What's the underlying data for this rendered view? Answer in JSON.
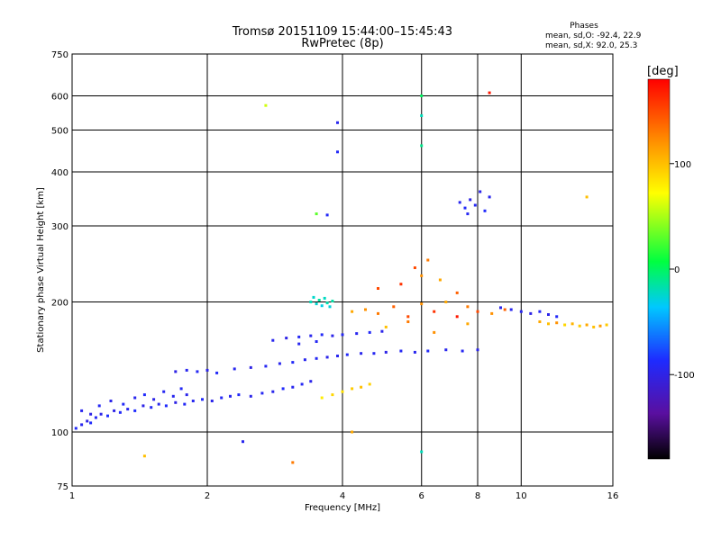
{
  "chart_data": {
    "type": "scatter",
    "title": "Tromsø 20151109 15:44:00–15:45:43",
    "subtitle": "RwPretec (8p)",
    "stats_title": "Phases",
    "stats_lines": [
      "mean, sd,O: -92.4, 22.9",
      "mean, sd,X:  92.0, 25.3"
    ],
    "xlabel": "Frequency [MHz]",
    "ylabel": "Stationary phase Virtual Height [km]",
    "x_scale": "log",
    "y_scale": "log",
    "xlim": [
      1,
      16
    ],
    "ylim": [
      75,
      750
    ],
    "xticks": [
      1,
      2,
      4,
      6,
      8,
      10,
      16
    ],
    "xtick_labels": [
      "1",
      "2",
      "4",
      "6",
      "8",
      "10",
      "16"
    ],
    "yticks": [
      75,
      100,
      200,
      300,
      400,
      500,
      600,
      750
    ],
    "ytick_labels": [
      "75",
      "100",
      "200",
      "300",
      "400",
      "500",
      "600",
      "750"
    ],
    "grid": true,
    "colorbar": {
      "label": "[deg]",
      "range": [
        -180,
        180
      ],
      "ticks": [
        100,
        0,
        -100
      ],
      "tick_labels": [
        "100",
        "0",
        "-100"
      ]
    },
    "series": [
      {
        "values": [
          [
            1.02,
            102,
            -90
          ],
          [
            1.05,
            104,
            -95
          ],
          [
            1.08,
            106,
            -100
          ],
          [
            1.1,
            105,
            -88
          ],
          [
            1.13,
            108,
            -92
          ],
          [
            1.16,
            110,
            -98
          ],
          [
            1.2,
            109,
            -85
          ],
          [
            1.24,
            112,
            -100
          ],
          [
            1.28,
            111,
            -90
          ],
          [
            1.33,
            113,
            -95
          ],
          [
            1.38,
            112,
            -87
          ],
          [
            1.44,
            115,
            -99
          ],
          [
            1.5,
            114,
            -92
          ],
          [
            1.56,
            116,
            -96
          ],
          [
            1.62,
            115,
            -88
          ],
          [
            1.7,
            117,
            -100
          ],
          [
            1.78,
            116,
            -91
          ],
          [
            1.86,
            118,
            -94
          ],
          [
            1.95,
            119,
            -89
          ],
          [
            2.05,
            118,
            -97
          ],
          [
            2.15,
            120,
            -92
          ],
          [
            2.25,
            121,
            -95
          ],
          [
            2.35,
            122,
            -90
          ],
          [
            2.5,
            121,
            -98
          ],
          [
            2.65,
            123,
            -93
          ],
          [
            2.8,
            124,
            -96
          ],
          [
            2.95,
            126,
            -88
          ],
          [
            3.1,
            127,
            -95
          ],
          [
            3.25,
            129,
            -92
          ],
          [
            3.4,
            131,
            -97
          ]
        ]
      },
      {
        "values": [
          [
            1.05,
            112,
            -95
          ],
          [
            1.1,
            110,
            -100
          ],
          [
            1.15,
            115,
            -92
          ],
          [
            1.22,
            118,
            -98
          ],
          [
            1.3,
            116,
            -90
          ],
          [
            1.38,
            120,
            -96
          ],
          [
            1.45,
            122,
            -88
          ],
          [
            1.52,
            119,
            -99
          ],
          [
            1.6,
            124,
            -93
          ],
          [
            1.68,
            121,
            -95
          ],
          [
            1.75,
            126,
            -91
          ],
          [
            1.8,
            122,
            -97
          ]
        ]
      },
      {
        "values": [
          [
            1.7,
            138,
            -100
          ],
          [
            1.8,
            139,
            -95
          ],
          [
            1.9,
            138,
            -92
          ],
          [
            2.0,
            139,
            -98
          ],
          [
            2.1,
            137,
            -90
          ],
          [
            2.3,
            140,
            -95
          ],
          [
            2.5,
            141,
            -100
          ],
          [
            2.7,
            142,
            -93
          ],
          [
            2.9,
            144,
            -96
          ],
          [
            3.1,
            145,
            -90
          ],
          [
            3.3,
            147,
            -95
          ],
          [
            3.5,
            148,
            -92
          ],
          [
            3.7,
            149,
            -98
          ],
          [
            3.9,
            150,
            -95
          ],
          [
            4.1,
            151,
            -90
          ],
          [
            4.4,
            152,
            -96
          ],
          [
            4.7,
            152,
            -93
          ],
          [
            5.0,
            153,
            -99
          ],
          [
            5.4,
            154,
            -92
          ],
          [
            5.8,
            153,
            -95
          ],
          [
            6.2,
            154,
            -90
          ],
          [
            6.8,
            155,
            -96
          ],
          [
            7.4,
            154,
            -93
          ],
          [
            8.0,
            155,
            -98
          ]
        ]
      },
      {
        "values": [
          [
            2.8,
            163,
            -95
          ],
          [
            3.0,
            165,
            -100
          ],
          [
            3.2,
            166,
            -92
          ],
          [
            3.4,
            167,
            -96
          ],
          [
            3.6,
            168,
            -90
          ],
          [
            3.8,
            167,
            -98
          ],
          [
            4.0,
            168,
            -93
          ],
          [
            4.3,
            169,
            -95
          ],
          [
            4.6,
            170,
            -90
          ],
          [
            4.9,
            171,
            -97
          ],
          [
            3.2,
            160,
            -95
          ],
          [
            3.5,
            162,
            -92
          ]
        ]
      },
      {
        "values": [
          [
            3.4,
            200,
            -20
          ],
          [
            3.5,
            198,
            -25
          ],
          [
            3.55,
            202,
            -15
          ],
          [
            3.6,
            196,
            -30
          ],
          [
            3.65,
            204,
            -22
          ],
          [
            3.7,
            199,
            -18
          ],
          [
            3.75,
            195,
            -28
          ],
          [
            3.45,
            205,
            -24
          ],
          [
            3.8,
            201,
            -16
          ]
        ]
      },
      {
        "values": [
          [
            3.6,
            120,
            80
          ],
          [
            3.8,
            122,
            90
          ],
          [
            4.0,
            124,
            85
          ],
          [
            4.2,
            126,
            95
          ],
          [
            4.4,
            127,
            100
          ],
          [
            4.6,
            129,
            92
          ]
        ]
      },
      {
        "values": [
          [
            4.2,
            190,
            110
          ],
          [
            4.5,
            192,
            120
          ],
          [
            4.8,
            188,
            130
          ],
          [
            5.2,
            195,
            140
          ],
          [
            5.6,
            185,
            150
          ],
          [
            6.0,
            198,
            120
          ],
          [
            6.4,
            190,
            160
          ],
          [
            6.8,
            200,
            110
          ],
          [
            7.2,
            185,
            170
          ],
          [
            7.6,
            195,
            130
          ],
          [
            8.0,
            190,
            150
          ],
          [
            8.6,
            188,
            120
          ],
          [
            9.2,
            192,
            140
          ],
          [
            4.8,
            215,
            150
          ],
          [
            5.4,
            220,
            160
          ],
          [
            6.0,
            230,
            120
          ],
          [
            6.6,
            225,
            110
          ],
          [
            7.2,
            210,
            140
          ],
          [
            5.0,
            175,
            100
          ],
          [
            5.6,
            180,
            130
          ],
          [
            6.4,
            170,
            120
          ],
          [
            7.6,
            178,
            110
          ],
          [
            5.8,
            240,
            150
          ],
          [
            6.2,
            250,
            130
          ]
        ]
      },
      {
        "values": [
          [
            10.0,
            190,
            -95
          ],
          [
            10.5,
            188,
            -100
          ],
          [
            11.0,
            190,
            -92
          ],
          [
            11.5,
            187,
            -98
          ],
          [
            12.0,
            185,
            -90
          ],
          [
            9.5,
            192,
            -95
          ],
          [
            9.0,
            194,
            -98
          ]
        ]
      },
      {
        "values": [
          [
            11.0,
            180,
            110
          ],
          [
            11.5,
            178,
            100
          ],
          [
            12.0,
            179,
            120
          ],
          [
            12.5,
            177,
            90
          ],
          [
            13.0,
            178,
            105
          ],
          [
            13.5,
            176,
            95
          ],
          [
            14.0,
            177,
            110
          ],
          [
            14.5,
            175,
            100
          ],
          [
            15.0,
            176,
            115
          ],
          [
            15.5,
            177,
            95
          ]
        ]
      },
      {
        "values": [
          [
            7.3,
            340,
            -95
          ],
          [
            7.5,
            330,
            -90
          ],
          [
            7.7,
            345,
            -100
          ],
          [
            7.9,
            335,
            -92
          ],
          [
            8.1,
            360,
            -98
          ],
          [
            8.3,
            325,
            -88
          ],
          [
            8.5,
            350,
            -96
          ],
          [
            7.6,
            320,
            -93
          ]
        ]
      },
      {
        "values": [
          [
            2.7,
            570,
            60
          ],
          [
            3.5,
            320,
            30
          ],
          [
            3.7,
            318,
            -90
          ],
          [
            3.9,
            520,
            -95
          ],
          [
            3.9,
            445,
            -90
          ],
          [
            6.0,
            600,
            0
          ],
          [
            6.0,
            540,
            -20
          ],
          [
            6.0,
            460,
            -10
          ],
          [
            8.5,
            610,
            170
          ],
          [
            14.0,
            350,
            100
          ],
          [
            6.0,
            90,
            -20
          ],
          [
            3.1,
            85,
            130
          ],
          [
            4.2,
            100,
            110
          ],
          [
            2.4,
            95,
            -95
          ],
          [
            1.45,
            88,
            100
          ]
        ]
      }
    ]
  }
}
